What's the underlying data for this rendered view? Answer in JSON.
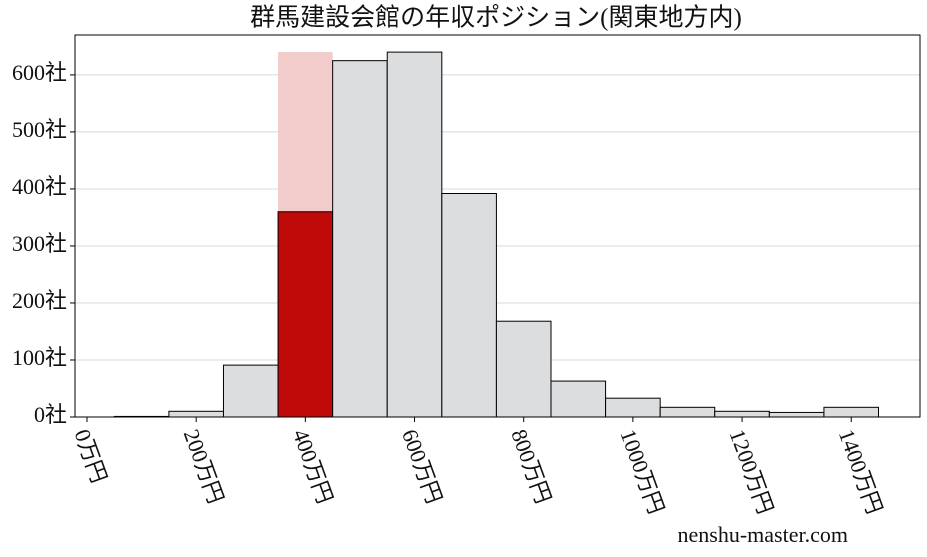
{
  "chart_data": {
    "type": "histogram",
    "title": "群馬建設会館の年収ポジション(関東地方内)",
    "bins": [
      50,
      150,
      250,
      350,
      450,
      550,
      650,
      750,
      850,
      950,
      1050,
      1150,
      1250,
      1350,
      1450
    ],
    "counts": [
      1,
      10,
      91,
      360,
      625,
      640,
      392,
      168,
      63,
      33,
      17,
      10,
      8,
      17
    ],
    "colors": [
      "#dcdddf",
      "#dcdddf",
      "#dcdddf",
      "#c00a0a",
      "#dcdddf",
      "#dcdddf",
      "#dcdddf",
      "#dcdddf",
      "#dcdddf",
      "#dcdddf",
      "#dcdddf",
      "#dcdddf",
      "#dcdddf",
      "#dcdddf"
    ],
    "range_band": {
      "x": [
        350,
        450
      ],
      "value": 640,
      "color": "#f2cbcb"
    },
    "xlim": [
      -22,
      1526
    ],
    "ylim": [
      0,
      670
    ],
    "xticks": [
      {
        "value": 0,
        "label": "0万円"
      },
      {
        "value": 200,
        "label": "200万円"
      },
      {
        "value": 400,
        "label": "400万円"
      },
      {
        "value": 600,
        "label": "600万円"
      },
      {
        "value": 800,
        "label": "800万円"
      },
      {
        "value": 1000,
        "label": "1000万円"
      },
      {
        "value": 1200,
        "label": "1200万円"
      },
      {
        "value": 1400,
        "label": "1400万円"
      }
    ],
    "yticks": [
      {
        "value": 0,
        "label": "0社"
      },
      {
        "value": 100,
        "label": "100社"
      },
      {
        "value": 200,
        "label": "200社"
      },
      {
        "value": 300,
        "label": "300社"
      },
      {
        "value": 400,
        "label": "400社"
      },
      {
        "value": 500,
        "label": "500社"
      },
      {
        "value": 600,
        "label": "600社"
      }
    ],
    "grid": true,
    "watermark": "nenshu-master.com"
  }
}
